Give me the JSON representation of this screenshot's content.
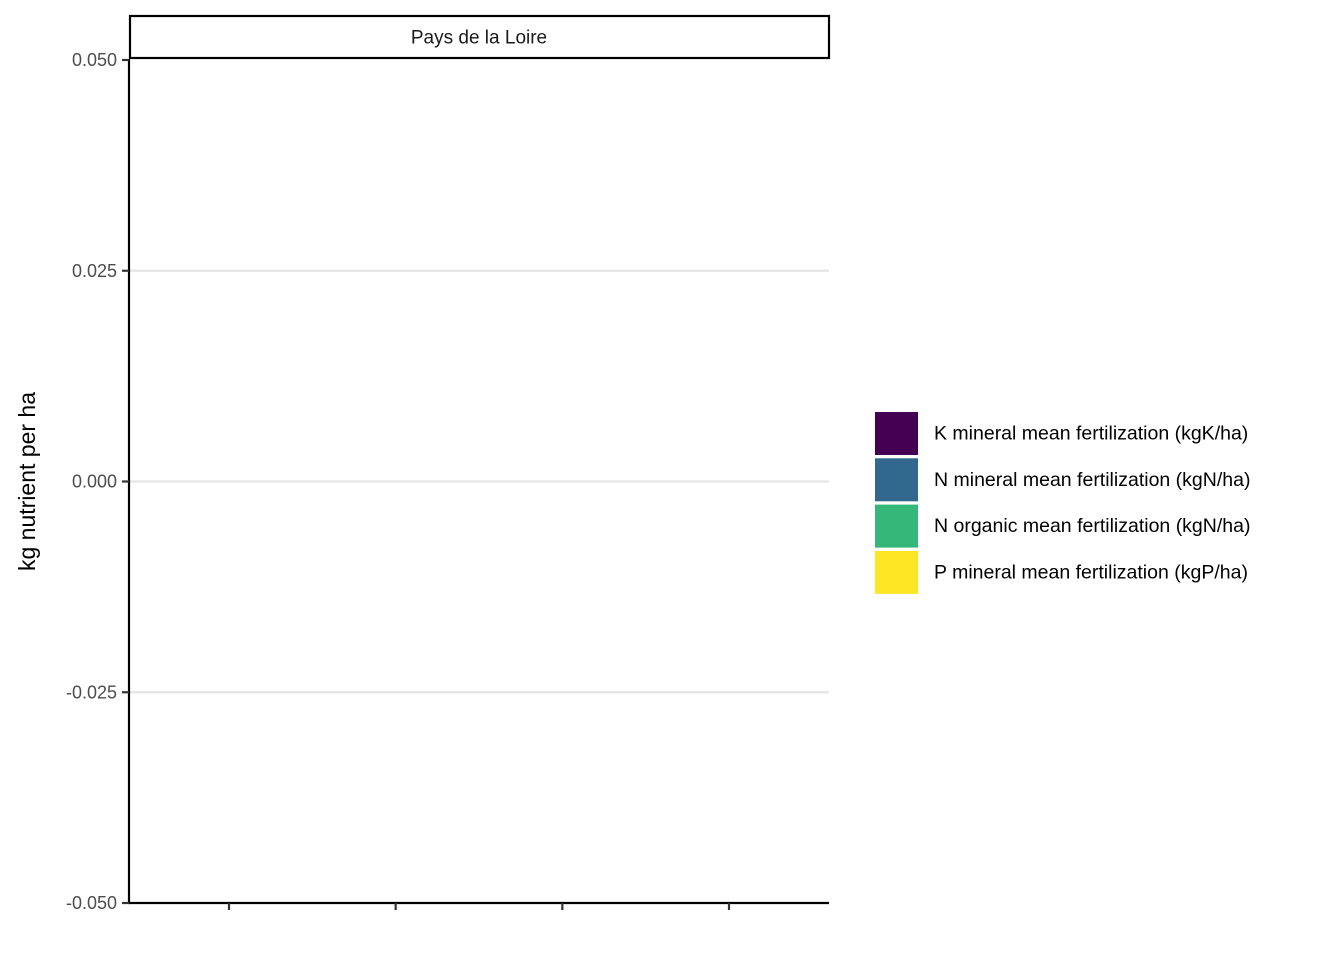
{
  "chart_data": {
    "type": "bar",
    "facet_title": "Pays de la Loire",
    "xlabel": "",
    "ylabel": "kg nutrient per ha",
    "ylim": [
      -0.05,
      0.05
    ],
    "yticks": [
      0.05,
      0.025,
      0.0,
      -0.025,
      -0.05
    ],
    "ytick_labels": [
      "0.050",
      "0.025",
      "0.000",
      "-0.025",
      "-0.050"
    ],
    "x_tick_count": 4,
    "grid": "horizontal major",
    "legend_position": "right",
    "series": [
      {
        "name": "K mineral mean fertilization (kgK/ha)",
        "color": "#440154",
        "values": []
      },
      {
        "name": "N mineral mean fertilization (kgN/ha)",
        "color": "#31688E",
        "values": []
      },
      {
        "name": "N organic mean fertilization (kgN/ha)",
        "color": "#35B779",
        "values": []
      },
      {
        "name": "P mineral mean fertilization (kgP/ha)",
        "color": "#FDE725",
        "values": []
      }
    ]
  }
}
